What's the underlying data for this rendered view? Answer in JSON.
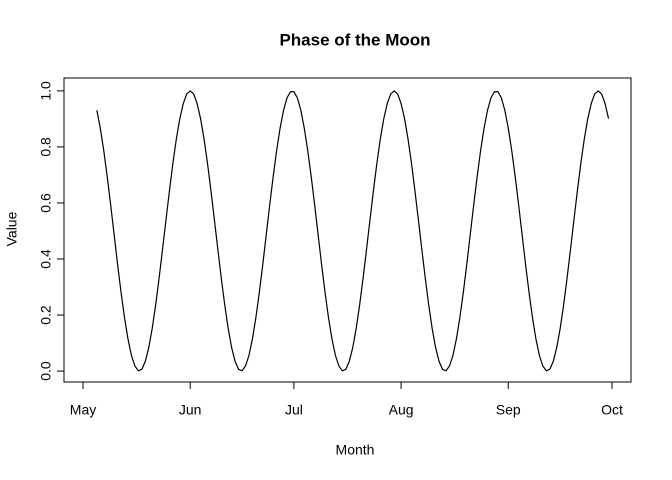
{
  "chart_data": {
    "type": "line",
    "title": "Phase of the Moon",
    "x_label": "Month",
    "y_label": "Value",
    "color": "#000000",
    "x": [
      4,
      5,
      6,
      7,
      8,
      9,
      10,
      11,
      12,
      13,
      14,
      15,
      16,
      17,
      18,
      19,
      20,
      21,
      22,
      23,
      24,
      25,
      26,
      27,
      28,
      29,
      30,
      31,
      32,
      33,
      34,
      35,
      36,
      37,
      38,
      39,
      40,
      41,
      42,
      43,
      44,
      45,
      46,
      47,
      48,
      49,
      50,
      51,
      52,
      53,
      54,
      55,
      56,
      57,
      58,
      59,
      60,
      61,
      62,
      63,
      64,
      65,
      66,
      67,
      68,
      69,
      70,
      71,
      72,
      73,
      74,
      75,
      76,
      77,
      78,
      79,
      80,
      81,
      82,
      83,
      84,
      85,
      86,
      87,
      88,
      89,
      90,
      91,
      92,
      93,
      94,
      95,
      96,
      97,
      98,
      99,
      100,
      101,
      102,
      103,
      104,
      105,
      106,
      107,
      108,
      109,
      110,
      111,
      112,
      113,
      114,
      115,
      116,
      117,
      118,
      119,
      120,
      121,
      122,
      123,
      124,
      125,
      126,
      127,
      128,
      129,
      130,
      131,
      132,
      133,
      134,
      135,
      136,
      137,
      138,
      139,
      140,
      141,
      142,
      143,
      144,
      145,
      146,
      147,
      148,
      149,
      150,
      151,
      152
    ],
    "values": [
      0.931,
      0.867,
      0.787,
      0.694,
      0.593,
      0.487,
      0.381,
      0.281,
      0.191,
      0.115,
      0.056,
      0.018,
      0.001,
      0.006,
      0.034,
      0.083,
      0.151,
      0.235,
      0.331,
      0.434,
      0.54,
      0.644,
      0.742,
      0.829,
      0.901,
      0.955,
      0.989,
      1.0,
      0.989,
      0.955,
      0.901,
      0.829,
      0.742,
      0.644,
      0.54,
      0.434,
      0.331,
      0.235,
      0.151,
      0.083,
      0.034,
      0.006,
      0.001,
      0.018,
      0.056,
      0.115,
      0.191,
      0.281,
      0.381,
      0.487,
      0.593,
      0.694,
      0.787,
      0.867,
      0.931,
      0.975,
      0.997,
      0.997,
      0.975,
      0.931,
      0.867,
      0.787,
      0.694,
      0.593,
      0.487,
      0.381,
      0.281,
      0.191,
      0.115,
      0.056,
      0.018,
      0.001,
      0.006,
      0.034,
      0.083,
      0.151,
      0.235,
      0.331,
      0.434,
      0.54,
      0.644,
      0.742,
      0.829,
      0.901,
      0.955,
      0.989,
      1.0,
      0.989,
      0.955,
      0.901,
      0.829,
      0.742,
      0.644,
      0.54,
      0.434,
      0.331,
      0.235,
      0.151,
      0.083,
      0.034,
      0.006,
      0.001,
      0.018,
      0.056,
      0.115,
      0.191,
      0.281,
      0.381,
      0.487,
      0.593,
      0.694,
      0.787,
      0.867,
      0.931,
      0.975,
      0.997,
      0.997,
      0.975,
      0.931,
      0.867,
      0.787,
      0.694,
      0.593,
      0.487,
      0.381,
      0.281,
      0.191,
      0.115,
      0.056,
      0.018,
      0.001,
      0.006,
      0.034,
      0.083,
      0.151,
      0.235,
      0.331,
      0.434,
      0.54,
      0.644,
      0.742,
      0.829,
      0.901,
      0.955,
      0.989,
      1.0,
      0.989,
      0.955,
      0.901
    ],
    "xlim": [
      -5.5,
      158.5
    ],
    "xticks": [
      {
        "value": 0,
        "label": "May"
      },
      {
        "value": 31,
        "label": "Jun"
      },
      {
        "value": 61,
        "label": "Jul"
      },
      {
        "value": 92,
        "label": "Aug"
      },
      {
        "value": 123,
        "label": "Sep"
      },
      {
        "value": 153,
        "label": "Oct"
      }
    ],
    "ylim": [
      -0.039,
      1.046
    ],
    "yticks": [
      {
        "value": 0,
        "label": "0.0"
      },
      0.2,
      0.4,
      0.6,
      0.8,
      {
        "value": 1,
        "label": "1.0"
      }
    ],
    "grid": false
  }
}
